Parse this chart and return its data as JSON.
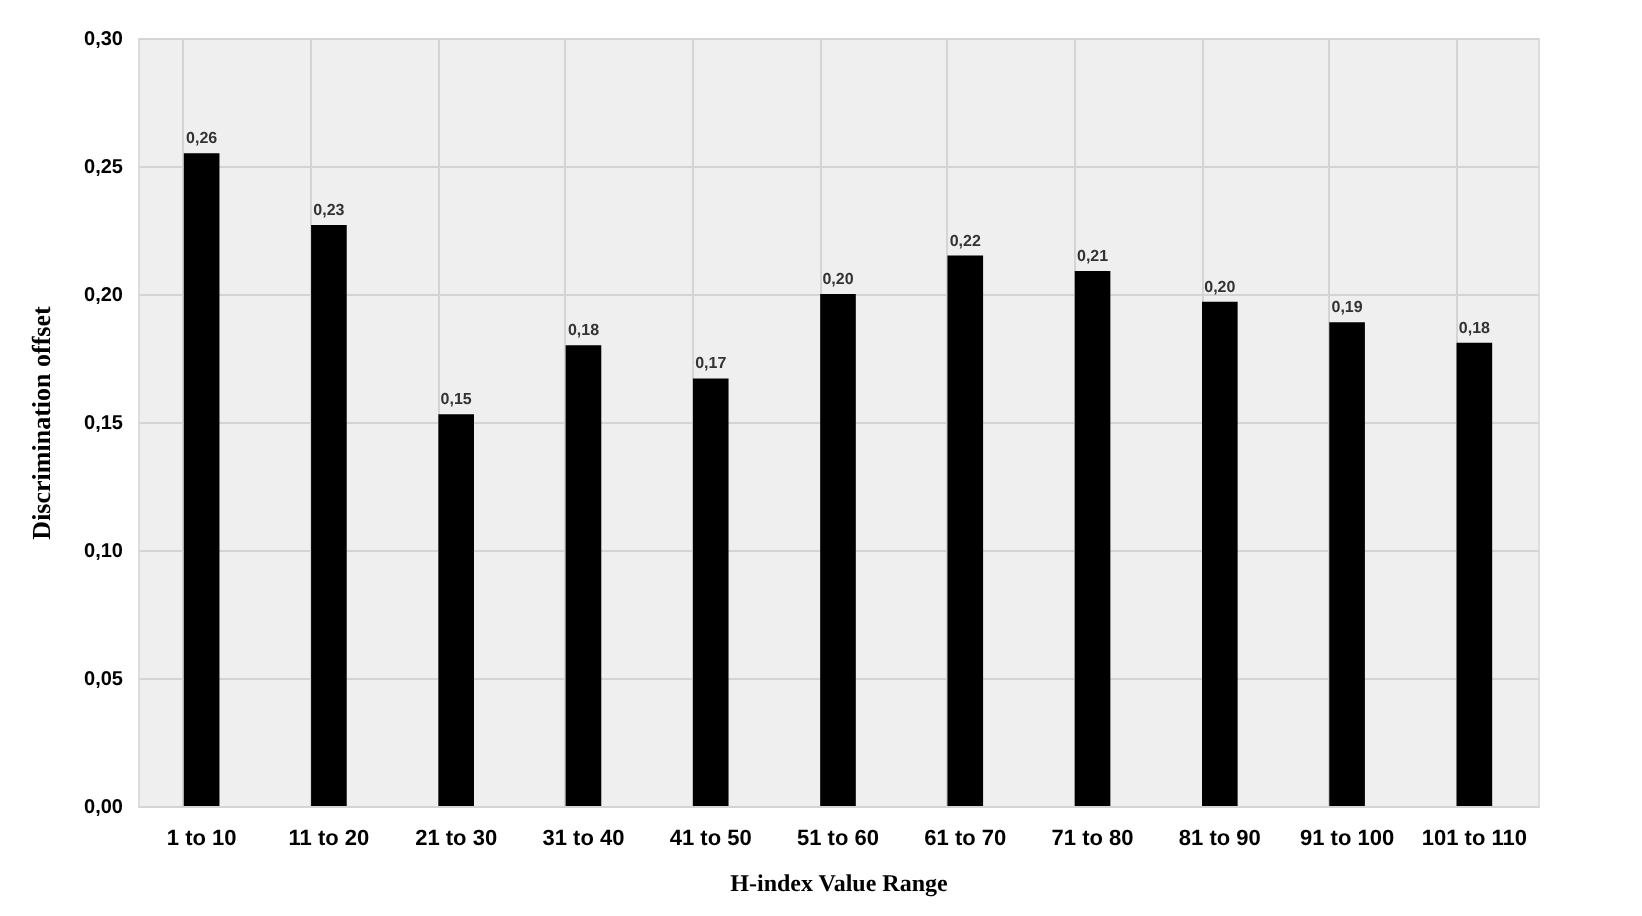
{
  "chart_data": {
    "type": "bar",
    "xlabel": "H-index Value Range",
    "ylabel": "Discrimination offset",
    "categories": [
      "1 to 10",
      "11 to 20",
      "21 to 30",
      "31 to 40",
      "41 to 50",
      "51 to 60",
      "61 to 70",
      "71 to 80",
      "81 to 90",
      "91 to 100",
      "101 to 110"
    ],
    "values": [
      0.255,
      0.227,
      0.153,
      0.18,
      0.167,
      0.2,
      0.215,
      0.209,
      0.197,
      0.189,
      0.181
    ],
    "value_labels": [
      "0,26",
      "0,23",
      "0,15",
      "0,18",
      "0,17",
      "0,20",
      "0,22",
      "0,21",
      "0,20",
      "0,19",
      "0,18"
    ],
    "color": "#000000",
    "ylim": [
      0,
      0.3
    ],
    "yticks": [
      {
        "value": 0,
        "label": "0,00"
      },
      {
        "value": 0.05,
        "label": "0,05"
      },
      {
        "value": 0.1,
        "label": "0,10"
      },
      {
        "value": 0.15,
        "label": "0,15"
      },
      {
        "value": 0.2,
        "label": "0,20"
      },
      {
        "value": 0.25,
        "label": "0,25"
      },
      {
        "value": 0.3,
        "label": "0,30"
      }
    ],
    "grid": true
  }
}
